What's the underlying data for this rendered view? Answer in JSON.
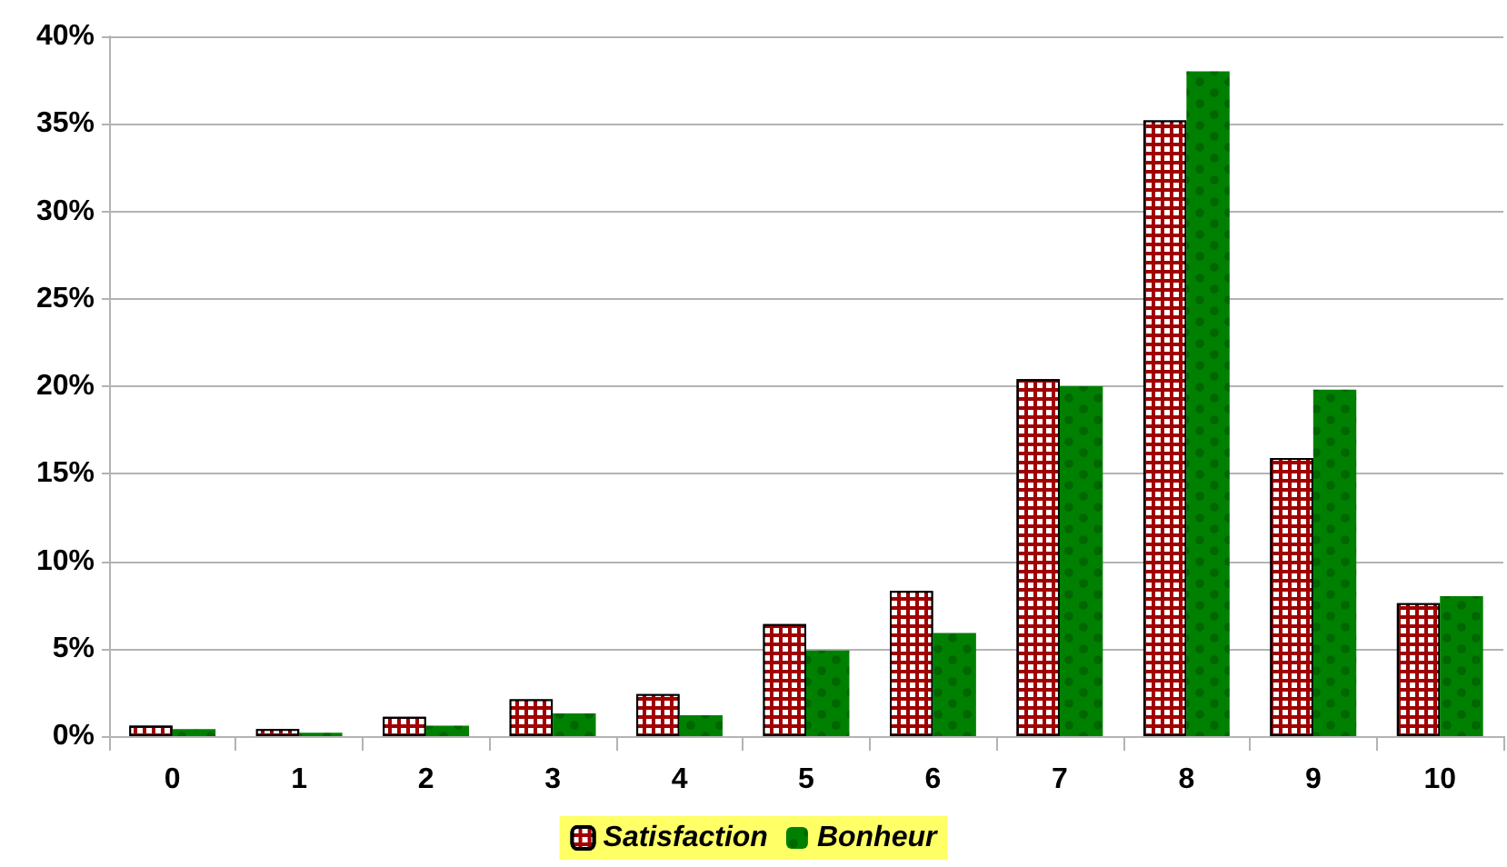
{
  "chart_data": {
    "type": "bar",
    "categories": [
      "0",
      "1",
      "2",
      "3",
      "4",
      "5",
      "6",
      "7",
      "8",
      "9",
      "10"
    ],
    "series": [
      {
        "name": "Satisfaction",
        "color": "#a00000",
        "values": [
          0.6,
          0.4,
          1.1,
          2.1,
          2.4,
          6.4,
          8.3,
          20.4,
          35.2,
          15.9,
          7.6
        ]
      },
      {
        "name": "Bonheur",
        "color": "#008000",
        "values": [
          0.4,
          0.2,
          0.6,
          1.3,
          1.2,
          4.9,
          5.9,
          20.0,
          38.0,
          19.8,
          8.0
        ]
      }
    ],
    "ylim": [
      0,
      40
    ],
    "yticks": [
      {
        "value": 0,
        "label": "0%"
      },
      {
        "value": 5,
        "label": "5%"
      },
      {
        "value": 10,
        "label": "10%"
      },
      {
        "value": 15,
        "label": "15%"
      },
      {
        "value": 20,
        "label": "20%"
      },
      {
        "value": 25,
        "label": "25%"
      },
      {
        "value": 30,
        "label": "30%"
      },
      {
        "value": 35,
        "label": "35%"
      },
      {
        "value": 40,
        "label": "40%"
      }
    ],
    "grid": "y",
    "legend": "bottom"
  }
}
